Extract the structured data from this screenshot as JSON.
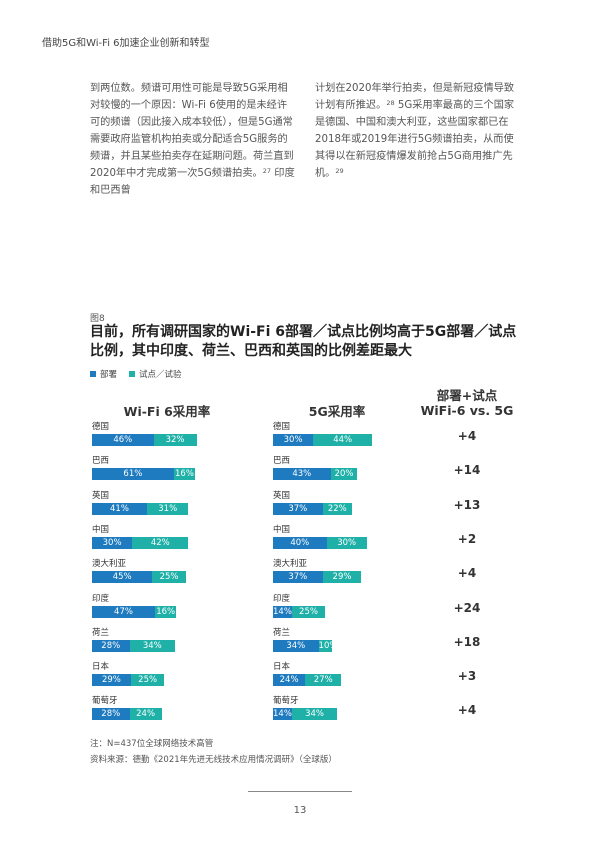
{
  "header": {
    "title": "借助5G和Wi-Fi 6加速企业创新和转型"
  },
  "paragraphs": {
    "left": {
      "text": "到两位数。频谱可用性可能是导致5G采用相对较慢的一个原因：Wi-Fi 6使用的是未经许可的频谱（因此接入成本较低），但是5G通常需要政府监管机构拍卖或分配适合5G服务的频谱，并且某些拍卖存在延期问题。荷兰直到2020年中才完成第一次5G频谱拍卖。",
      "ref": "27",
      "tail": "印度和巴西曾"
    },
    "right": {
      "text1": "计划在2020年举行拍卖，但是新冠疫情导致计划有所推迟。",
      "ref1": "28",
      "text2": "5G采用率最高的三个国家是德国、中国和澳大利亚，这些国家都已在2018年或2019年进行5G频谱拍卖，从而使其得以在新冠疫情爆发前抢占5G商用推广先机。",
      "ref2": "29"
    }
  },
  "figure": {
    "label": "图8",
    "title": "目前，所有调研国家的Wi-Fi 6部署／试点比例均高于5G部署／试点比例，其中印度、荷兰、巴西和英国的比例差距最大",
    "legend": {
      "deploy": "部署",
      "trial": "试点／试验"
    },
    "colors": {
      "deploy": "#1f7bbf",
      "trial": "#1fb1a8"
    },
    "col_wifi": "Wi-Fi 6采用率",
    "col_5g": "5G采用率",
    "col_diff_line1": "部署+试点",
    "col_diff_line2": "WiFi-6 vs. 5G"
  },
  "chart_data": {
    "type": "bar",
    "stacked": true,
    "categories": [
      "德国",
      "巴西",
      "英国",
      "中国",
      "澳大利亚",
      "印度",
      "荷兰",
      "日本",
      "葡萄牙"
    ],
    "panels": [
      {
        "title": "Wi-Fi 6采用率",
        "series": [
          {
            "name": "部署",
            "values": [
              46,
              61,
              41,
              30,
              45,
              47,
              28,
              29,
              28
            ]
          },
          {
            "name": "试点／试验",
            "values": [
              32,
              16,
              31,
              42,
              25,
              16,
              34,
              25,
              24
            ]
          }
        ]
      },
      {
        "title": "5G采用率",
        "series": [
          {
            "name": "部署",
            "values": [
              30,
              43,
              37,
              40,
              37,
              14,
              34,
              24,
              14
            ]
          },
          {
            "name": "试点／试验",
            "values": [
              44,
              20,
              22,
              30,
              29,
              25,
              10,
              27,
              34
            ]
          }
        ]
      }
    ],
    "difference": {
      "title": "部署+试点 WiFi-6 vs. 5G",
      "labels": [
        "+4",
        "+14",
        "+13",
        "+2",
        "+4",
        "+24",
        "+18",
        "+3",
        "+4"
      ]
    },
    "value_labels": {
      "percent": "%"
    }
  },
  "footnote": {
    "line1": "注：N=437位全球网络技术高管",
    "line2": "资料来源：德勤《2021年先进无线技术应用情况调研》（全球版）"
  },
  "page_number": "13"
}
